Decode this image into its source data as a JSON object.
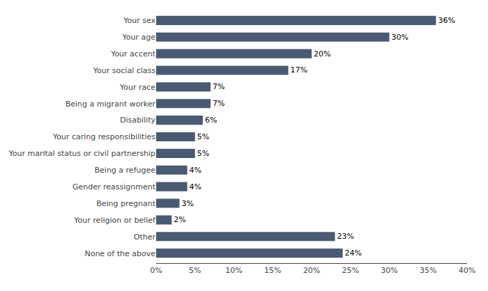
{
  "chart_data": {
    "type": "bar",
    "orientation": "horizontal",
    "categories": [
      "None of the above",
      "Other",
      "Your religion or belief",
      "Being pregnant",
      "Gender reassignment",
      "Being a refugee",
      "Your marital status or civil partnership",
      "Your caring responsibilities",
      "Disability",
      "Being a migrant worker",
      "Your race",
      "Your social class",
      "Your accent",
      "Your age",
      "Your sex"
    ],
    "values": [
      24,
      23,
      2,
      3,
      4,
      4,
      5,
      5,
      6,
      7,
      7,
      17,
      20,
      30,
      36
    ],
    "value_labels": [
      "24%",
      "23%",
      "2%",
      "3%",
      "4%",
      "4%",
      "5%",
      "5%",
      "6%",
      "7%",
      "7%",
      "17%",
      "20%",
      "30%",
      "36%"
    ],
    "data_labels": true,
    "color": "#4a5a72",
    "xlim": [
      0,
      40
    ],
    "xticks": [
      {
        "value": 0,
        "label": "0%"
      },
      {
        "value": 5,
        "label": "5%"
      },
      {
        "value": 10,
        "label": "10%"
      },
      {
        "value": 15,
        "label": "15%"
      },
      {
        "value": 20,
        "label": "20%"
      },
      {
        "value": 25,
        "label": "25%"
      },
      {
        "value": 30,
        "label": "30%"
      },
      {
        "value": 35,
        "label": "35%"
      },
      {
        "value": 40,
        "label": "40%"
      }
    ],
    "grid": false
  }
}
